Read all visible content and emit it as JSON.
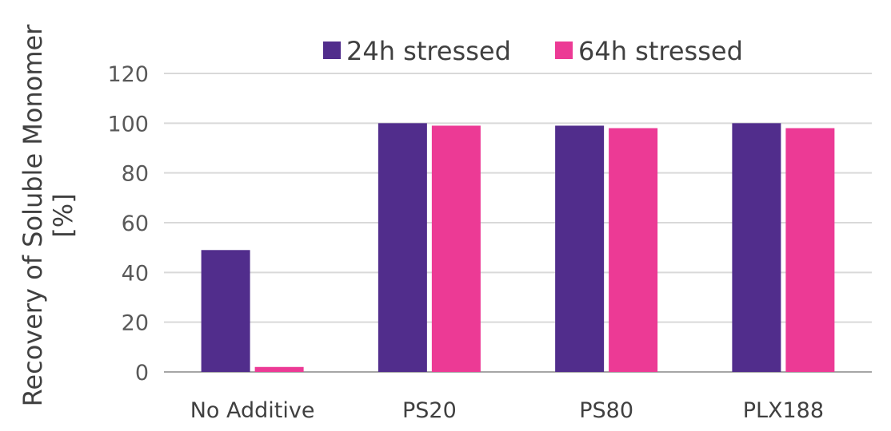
{
  "chart_data": {
    "type": "bar",
    "categories": [
      "No Additive",
      "PS20",
      "PS80",
      "PLX188"
    ],
    "series": [
      {
        "name": "24h stressed",
        "color": "#512D8C",
        "values": [
          49,
          100,
          99,
          100
        ]
      },
      {
        "name": "64h stressed",
        "color": "#EC3A95",
        "values": [
          2,
          99,
          98,
          98
        ]
      }
    ],
    "ylabel_lines": [
      "Recovery of Soluble Monomer",
      "[%]"
    ],
    "xlabel": "",
    "ylim": [
      0,
      120
    ],
    "yticks": [
      0,
      20,
      40,
      60,
      80,
      100,
      120
    ],
    "grid": true,
    "legend_position": "top"
  }
}
